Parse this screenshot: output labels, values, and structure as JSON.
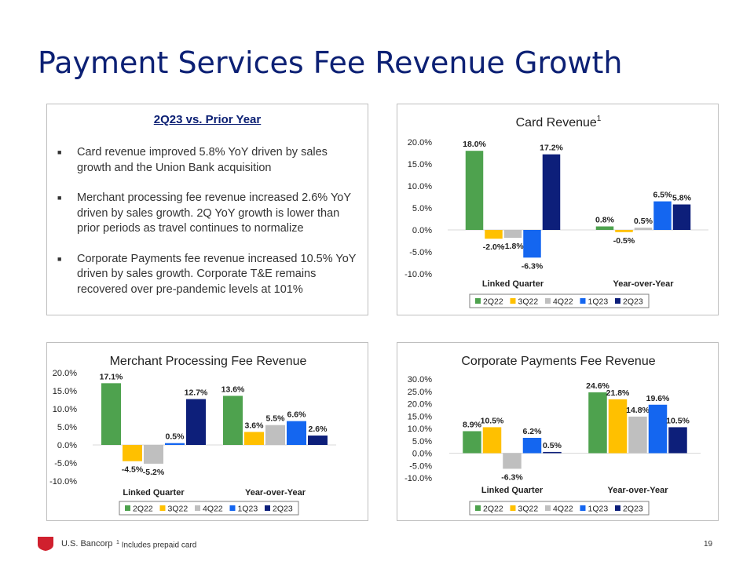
{
  "slide": {
    "title": "Payment Services Fee Revenue Growth",
    "page_number": "19",
    "brand": "U.S. Bancorp",
    "footnote_mark": "1",
    "footnote_text": "Includes prepaid card"
  },
  "summary": {
    "heading": "2Q23 vs. Prior Year",
    "bullets": [
      "Card revenue improved 5.8% YoY driven by sales growth and the Union Bank acquisition",
      "Merchant processing fee revenue increased 2.6% YoY driven by sales growth. 2Q YoY growth is lower than prior periods as travel continues to normalize",
      "Corporate Payments fee revenue increased 10.5% YoY driven by sales growth.  Corporate T&E remains recovered over pre-pandemic levels at 101%"
    ]
  },
  "colors": {
    "2Q22": "#4ea24e",
    "3Q22": "#ffc000",
    "4Q22": "#bfbfbf",
    "1Q23": "#1466f0",
    "2Q23": "#0d1f7a",
    "title": "#0c2074",
    "brand_red": "#d0202e"
  },
  "chart_data": [
    {
      "type": "bar",
      "title": "Card Revenue",
      "title_superscript": "1",
      "categories": [
        "Linked Quarter",
        "Year-over-Year"
      ],
      "series": [
        {
          "name": "2Q22",
          "values": [
            18.0,
            0.8
          ],
          "labels": [
            "18.0%",
            "0.8%"
          ]
        },
        {
          "name": "3Q22",
          "values": [
            -2.0,
            -0.5
          ],
          "labels": [
            "-2.0%",
            "-0.5%"
          ]
        },
        {
          "name": "4Q22",
          "values": [
            -1.8,
            0.5
          ],
          "labels": [
            "-1.8%",
            "0.5%"
          ]
        },
        {
          "name": "1Q23",
          "values": [
            -6.3,
            6.5
          ],
          "labels": [
            "-6.3%",
            "6.5%"
          ]
        },
        {
          "name": "2Q23",
          "values": [
            17.2,
            5.8
          ],
          "labels": [
            "17.2%",
            "5.8%"
          ]
        }
      ],
      "ylim": [
        -10,
        20
      ],
      "yticks": [
        20,
        15,
        10,
        5,
        0,
        -5,
        -10
      ],
      "ytick_labels": [
        "20.0%",
        "15.0%",
        "10.0%",
        "5.0%",
        "0.0%",
        "-5.0%",
        "-10.0%"
      ],
      "legend": "bottom"
    },
    {
      "type": "bar",
      "title": "Merchant Processing Fee Revenue",
      "categories": [
        "Linked Quarter",
        "Year-over-Year"
      ],
      "series": [
        {
          "name": "2Q22",
          "values": [
            17.1,
            13.6
          ],
          "labels": [
            "17.1%",
            "13.6%"
          ]
        },
        {
          "name": "3Q22",
          "values": [
            -4.5,
            3.6
          ],
          "labels": [
            "-4.5%",
            "3.6%"
          ]
        },
        {
          "name": "4Q22",
          "values": [
            -5.2,
            5.5
          ],
          "labels": [
            "-5.2%",
            "5.5%"
          ]
        },
        {
          "name": "1Q23",
          "values": [
            0.5,
            6.6
          ],
          "labels": [
            "0.5%",
            "6.6%"
          ]
        },
        {
          "name": "2Q23",
          "values": [
            12.7,
            2.6
          ],
          "labels": [
            "12.7%",
            "2.6%"
          ]
        }
      ],
      "ylim": [
        -10,
        20
      ],
      "yticks": [
        20,
        15,
        10,
        5,
        0,
        -5,
        -10
      ],
      "ytick_labels": [
        "20.0%",
        "15.0%",
        "10.0%",
        "5.0%",
        "0.0%",
        "-5.0%",
        "-10.0%"
      ],
      "legend": "bottom"
    },
    {
      "type": "bar",
      "title": "Corporate Payments  Fee Revenue",
      "categories": [
        "Linked Quarter",
        "Year-over-Year"
      ],
      "series": [
        {
          "name": "2Q22",
          "values": [
            8.9,
            24.6
          ],
          "labels": [
            "8.9%",
            "24.6%"
          ]
        },
        {
          "name": "3Q22",
          "values": [
            10.5,
            21.8
          ],
          "labels": [
            "10.5%",
            "21.8%"
          ]
        },
        {
          "name": "4Q22",
          "values": [
            -6.3,
            14.8
          ],
          "labels": [
            "-6.3%",
            "14.8%"
          ]
        },
        {
          "name": "1Q23",
          "values": [
            6.2,
            19.6
          ],
          "labels": [
            "6.2%",
            "19.6%"
          ]
        },
        {
          "name": "2Q23",
          "values": [
            0.5,
            10.5
          ],
          "labels": [
            "0.5%",
            "10.5%"
          ]
        }
      ],
      "ylim": [
        -10,
        30
      ],
      "yticks": [
        30,
        25,
        20,
        15,
        10,
        5,
        0,
        -5,
        -10
      ],
      "ytick_labels": [
        "30.0%",
        "25.0%",
        "20.0%",
        "15.0%",
        "10.0%",
        "5.0%",
        "0.0%",
        "-5.0%",
        "-10.0%"
      ],
      "legend": "bottom"
    }
  ]
}
